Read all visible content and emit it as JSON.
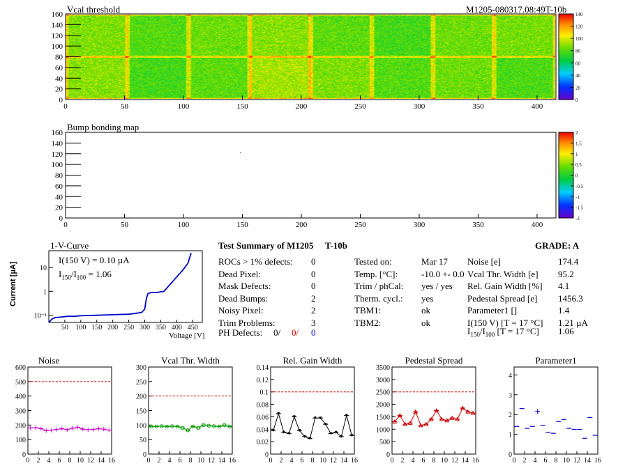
{
  "header": {
    "title_left": "Vcal threshold",
    "title_right": "M1205-080317.08:49T-10b"
  },
  "maps": [
    {
      "title": "Vcal threshold",
      "x_ticks": [
        "0",
        "50",
        "100",
        "150",
        "200",
        "250",
        "300",
        "350",
        "400"
      ],
      "y_ticks": [
        "0",
        "20",
        "40",
        "60",
        "80",
        "100",
        "120",
        "140",
        "160"
      ],
      "xlim": [
        0,
        416
      ],
      "ylim": [
        0,
        160
      ],
      "palette_ticks": [
        "0",
        "20",
        "40",
        "60",
        "80",
        "100",
        "120",
        "140"
      ],
      "palette_range": [
        0,
        140
      ]
    },
    {
      "title": "Bump bonding map",
      "x_ticks": [
        "0",
        "50",
        "100",
        "150",
        "200",
        "250",
        "300",
        "350",
        "400"
      ],
      "y_ticks": [
        "0",
        "20",
        "40",
        "60",
        "80",
        "100",
        "120",
        "140",
        "160"
      ],
      "xlim": [
        0,
        416
      ],
      "ylim": [
        0,
        160
      ],
      "palette_ticks": [
        "-2",
        "-1.5",
        "-1",
        "-0.5",
        "0",
        "0.5",
        "1",
        "1.5",
        "2"
      ],
      "palette_range": [
        -2,
        2
      ]
    }
  ],
  "iv": {
    "title": "1-V-Curve",
    "ylabel": "Current [µA]",
    "xlabel": "Voltage [V]",
    "x_ticks": [
      "50",
      "100",
      "150",
      "200",
      "250",
      "300",
      "350",
      "400",
      "450"
    ],
    "y_ticks": [
      "10⁻¹",
      "1",
      "10"
    ],
    "annot1": "I(150 V) = 0.10 µA",
    "annot2a": "I",
    "annot2sub1": "150",
    "annot2b": "/I",
    "annot2sub2": "100",
    "annot2c": " =  1.06"
  },
  "summary": {
    "title": "Test Summary of M1205",
    "tag": "T-10b",
    "grade": "GRADE:  A",
    "col1": [
      {
        "label": "ROCs > 1% defects:",
        "value": "0"
      },
      {
        "label": "Dead Pixel:",
        "value": "0"
      },
      {
        "label": "Mask Defects:",
        "value": "0"
      },
      {
        "label": "Dead Bumps:",
        "value": "2"
      },
      {
        "label": "Noisy Pixel:",
        "value": "2"
      },
      {
        "label": "Trim Problems:",
        "value": "3"
      }
    ],
    "ph_label": "PH Defects:",
    "ph_v1": "0/",
    "ph_v2": "0/",
    "ph_v3": "0",
    "col2": [
      {
        "label": "Tested on:",
        "value": "Mar 17"
      },
      {
        "label": "Temp. [°C]:",
        "value": "-10.0 +- 0.0"
      },
      {
        "label": "Trim / phCal:",
        "value": "yes / yes"
      },
      {
        "label": "Therm. cycl.:",
        "value": "yes"
      },
      {
        "label": "TBM1:",
        "value": "ok"
      },
      {
        "label": "TBM2:",
        "value": "ok"
      }
    ],
    "col3": [
      {
        "label": "Noise [e]",
        "value": "174.4"
      },
      {
        "label": "Vcal Thr. Width [e]",
        "value": "95.2"
      },
      {
        "label": "Rel. Gain Width [%]",
        "value": "4.1"
      },
      {
        "label": "Pedestal Spread [e]",
        "value": "1456.3"
      },
      {
        "label": "Parameter1 []",
        "value": "1.4"
      },
      {
        "label": "I(150 V) [T = 17 °C]",
        "value": "1.21 µA"
      }
    ],
    "last_a": "I",
    "last_sub1": "150",
    "last_b": "/I",
    "last_sub2": "100",
    "last_c": "  [T = 17 °C]",
    "last_value": "1.06"
  },
  "chart_data": [
    {
      "type": "heatmap",
      "title": "Vcal threshold",
      "x_range": [
        0,
        416
      ],
      "y_range": [
        0,
        160
      ],
      "z_range": [
        0,
        140
      ],
      "description_values": {
        "typical": 85,
        "roc_edges": 110
      }
    },
    {
      "type": "heatmap",
      "title": "Bump bonding map",
      "x_range": [
        0,
        416
      ],
      "y_range": [
        0,
        160
      ],
      "z_range": [
        -2,
        2
      ]
    },
    {
      "type": "line",
      "title": "1-V-Curve",
      "xlabel": "Voltage [V]",
      "ylabel": "Current [µA]",
      "yscale": "log",
      "xlim": [
        0,
        480
      ],
      "ylim": [
        0.05,
        50
      ],
      "x": [
        0,
        10,
        20,
        40,
        60,
        80,
        100,
        150,
        200,
        250,
        290,
        300,
        305,
        310,
        320,
        340,
        360,
        380,
        400,
        420,
        435,
        445
      ],
      "y": [
        0.05,
        0.07,
        0.08,
        0.085,
        0.09,
        0.09,
        0.095,
        0.1,
        0.105,
        0.11,
        0.13,
        0.18,
        0.5,
        0.8,
        0.9,
        0.9,
        1.0,
        2.0,
        4.0,
        8.0,
        15,
        40
      ],
      "color": "#0000cc"
    },
    {
      "type": "line",
      "title": "Noise",
      "xlim": [
        0,
        16
      ],
      "ylim": [
        0,
        600
      ],
      "ref_line": 500,
      "color": "#cc00cc",
      "x": [
        0,
        1,
        2,
        3,
        4,
        5,
        6,
        7,
        8,
        9,
        10,
        11,
        12,
        13,
        14,
        15
      ],
      "values": [
        180,
        182,
        175,
        162,
        165,
        170,
        175,
        168,
        178,
        185,
        172,
        168,
        170,
        175,
        172,
        165
      ],
      "y_ticks": [
        "0",
        "100",
        "200",
        "300",
        "400",
        "500",
        "600"
      ]
    },
    {
      "type": "line",
      "title": "Vcal Thr. Width",
      "xlim": [
        0,
        16
      ],
      "ylim": [
        0,
        300
      ],
      "ref_line": 200,
      "color": "#009900",
      "x": [
        0,
        1,
        2,
        3,
        4,
        5,
        6,
        7,
        8,
        9,
        10,
        11,
        12,
        13,
        14,
        15
      ],
      "values": [
        95,
        95,
        96,
        95,
        96,
        95,
        90,
        82,
        95,
        90,
        100,
        98,
        96,
        95,
        100,
        95
      ],
      "y_ticks": [
        "0",
        "50",
        "100",
        "150",
        "200",
        "250",
        "300"
      ]
    },
    {
      "type": "line",
      "title": "Rel. Gain Width",
      "xlim": [
        0,
        16
      ],
      "ylim": [
        0,
        0.14
      ],
      "ref_line": 0.1,
      "color": "#000000",
      "x": [
        0,
        1,
        2,
        3,
        4,
        5,
        6,
        7,
        8,
        9,
        10,
        11,
        12,
        13,
        14,
        15
      ],
      "values": [
        0.038,
        0.065,
        0.035,
        0.033,
        0.06,
        0.038,
        0.028,
        0.025,
        0.058,
        0.058,
        0.048,
        0.033,
        0.035,
        0.028,
        0.062,
        0.03
      ],
      "y_ticks": [
        "0",
        "0.02",
        "0.04",
        "0.06",
        "0.08",
        "0.1",
        "0.12",
        "0.14"
      ]
    },
    {
      "type": "line",
      "title": "Pedestal Spread",
      "xlim": [
        0,
        16
      ],
      "ylim": [
        0,
        3500
      ],
      "ref_line": 2500,
      "color": "#cc0000",
      "x": [
        0,
        1,
        2,
        3,
        4,
        5,
        6,
        7,
        8,
        9,
        10,
        11,
        12,
        13,
        14,
        15
      ],
      "values": [
        1300,
        1550,
        1200,
        1250,
        1700,
        1150,
        1200,
        1400,
        1750,
        1400,
        1350,
        1450,
        1400,
        1850,
        1700,
        1650
      ],
      "y_ticks": [
        "0",
        "500",
        "1000",
        "1500",
        "2000",
        "2500",
        "3000",
        "3500"
      ]
    },
    {
      "type": "scatter",
      "title": "Parameter1",
      "xlim": [
        0,
        16
      ],
      "ylim": [
        0,
        4.4
      ],
      "color": "#0000cc",
      "x": [
        0,
        1,
        2,
        3,
        4,
        5,
        6,
        7,
        8,
        9,
        10,
        11,
        12,
        13,
        14,
        15
      ],
      "values": [
        1.4,
        2.3,
        1.3,
        1.4,
        2.15,
        1.45,
        1.1,
        1.05,
        1.65,
        1.75,
        1.3,
        1.25,
        1.25,
        0.8,
        1.85,
        0.95
      ],
      "y_ticks": [
        "0",
        "1",
        "2",
        "3",
        "4"
      ]
    }
  ],
  "small_x_ticks": [
    "0",
    "2",
    "4",
    "6",
    "8",
    "10",
    "12",
    "14",
    "16"
  ]
}
